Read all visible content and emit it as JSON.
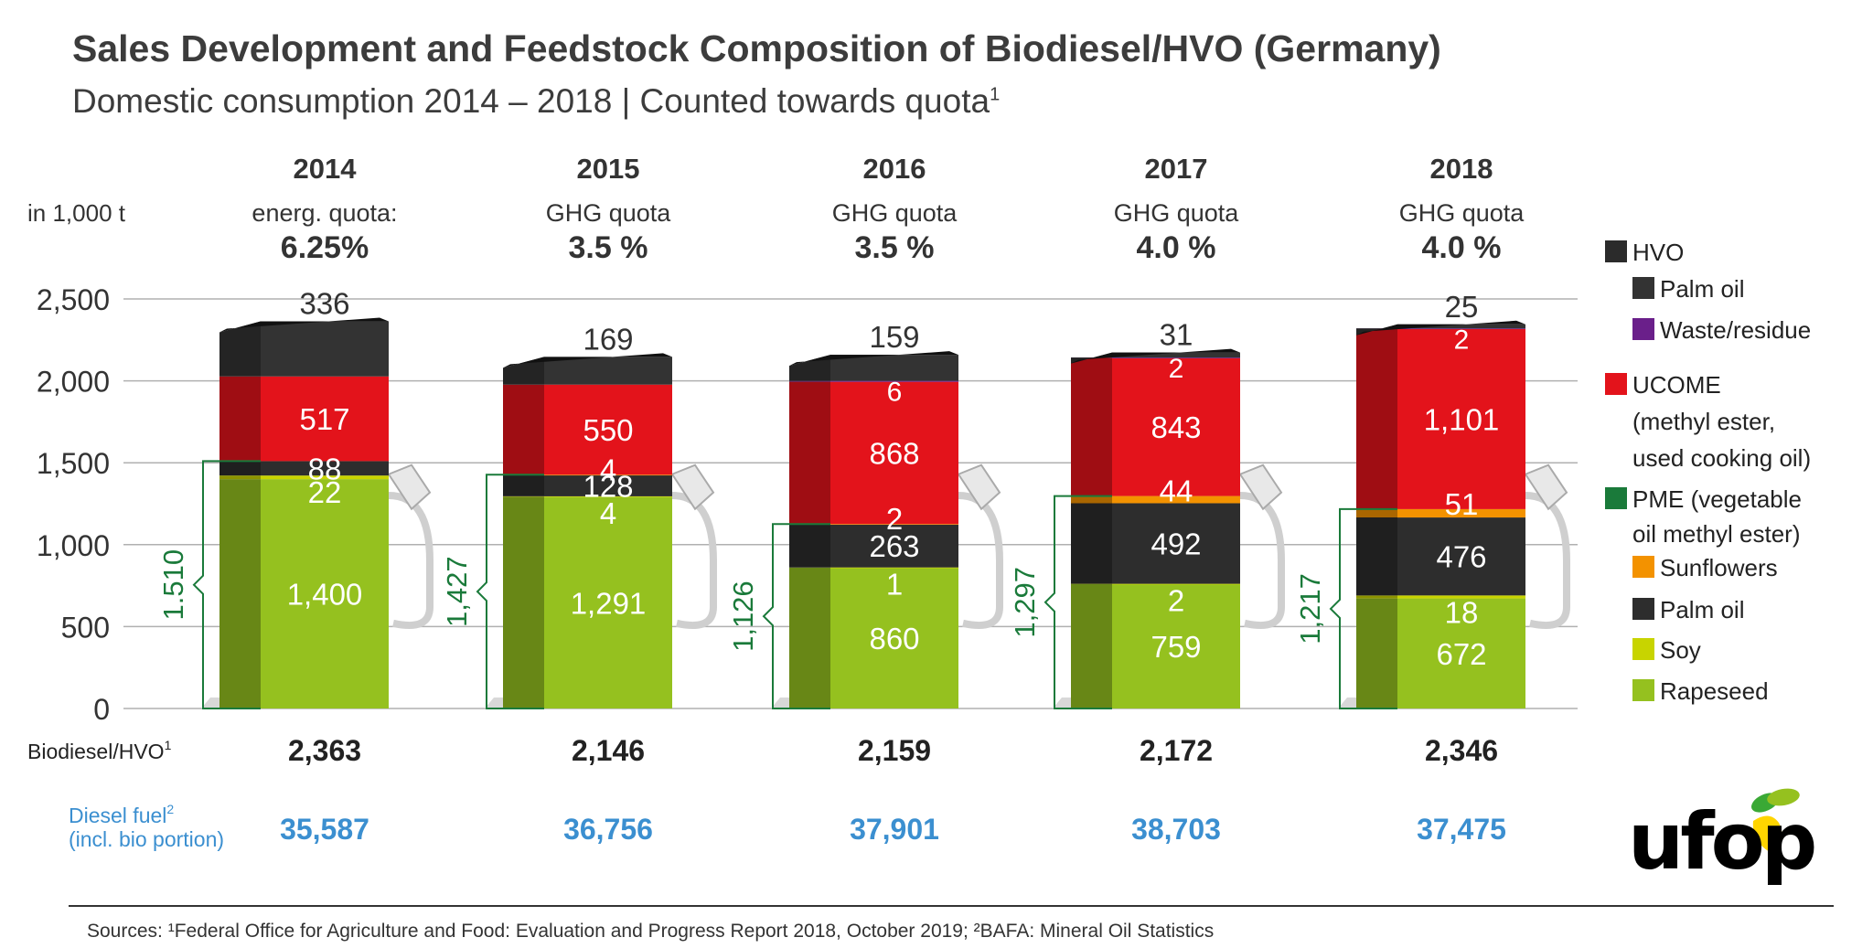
{
  "title": "Sales Development and Feedstock Composition of Biodiesel/HVO (Germany)",
  "subtitle": "Domestic consumption 2014 – 2018 | Counted towards quota",
  "subtitle_footnote": "1",
  "unit_label": "in 1,000 t",
  "colors": {
    "hvo": "#2b2b2b",
    "hvo_palm": "#333333",
    "hvo_waste": "#6a1f8a",
    "ucome": "#e3131b",
    "pme": "#1a7a3a",
    "sunflowers": "#f39200",
    "palm_oil": "#2d2d2d",
    "soy": "#c8d400",
    "rapeseed": "#95c11f",
    "blue": "#3b8fd0",
    "green_text": "#1a7a3a"
  },
  "chart_data": {
    "type": "bar",
    "stacked": true,
    "categories": [
      "2014",
      "2015",
      "2016",
      "2017",
      "2018"
    ],
    "quota_labels": [
      {
        "type": "energ. quota:",
        "value": "6.25%"
      },
      {
        "type": "GHG quota",
        "value": "3.5 %"
      },
      {
        "type": "GHG quota",
        "value": "3.5 %"
      },
      {
        "type": "GHG quota",
        "value": "4.0 %"
      },
      {
        "type": "GHG quota",
        "value": "4.0 %"
      }
    ],
    "ylim": [
      0,
      2500
    ],
    "yticks": [
      0,
      500,
      1000,
      1500,
      2000,
      2500
    ],
    "ytick_labels": [
      "0",
      "500",
      "1,000",
      "1,500",
      "2,000",
      "2,500"
    ],
    "series": [
      {
        "name": "Rapeseed",
        "group": "PME",
        "values": [
          1400,
          1291,
          860,
          759,
          672
        ],
        "labels": [
          "1,400",
          "1,291",
          "860",
          "759",
          "672"
        ]
      },
      {
        "name": "Soy",
        "group": "PME",
        "values": [
          22,
          4,
          1,
          2,
          18
        ],
        "labels": [
          "22",
          "4",
          "1",
          "2",
          "18"
        ]
      },
      {
        "name": "Palm oil",
        "group": "PME",
        "values": [
          88,
          128,
          263,
          492,
          476
        ],
        "labels": [
          "88",
          "128",
          "263",
          "492",
          "476"
        ]
      },
      {
        "name": "Sunflowers",
        "group": "PME",
        "values": [
          0,
          4,
          2,
          44,
          51
        ],
        "labels": [
          "",
          "4",
          "2",
          "44",
          "51"
        ]
      },
      {
        "name": "UCOME",
        "group": "UCOME",
        "values": [
          517,
          550,
          868,
          843,
          1101
        ],
        "labels": [
          "517",
          "550",
          "868",
          "843",
          "1,101"
        ]
      },
      {
        "name": "Waste/residue",
        "group": "HVO",
        "values": [
          0,
          0,
          6,
          2,
          2
        ],
        "labels": [
          "",
          "",
          "6",
          "2",
          "2"
        ]
      },
      {
        "name": "Palm oil",
        "group": "HVO",
        "values": [
          336,
          169,
          159,
          31,
          25
        ],
        "labels": [
          "336",
          "169",
          "159",
          "31",
          "25"
        ]
      }
    ],
    "pme_totals": [
      "1.510",
      "1,427",
      "1,126",
      "1,297",
      "1,217"
    ],
    "pme_total_values": [
      1510,
      1427,
      1126,
      1297,
      1217
    ],
    "biodiesel_hvo_label": "Biodiesel/HVO",
    "biodiesel_hvo_footnote": "1",
    "biodiesel_hvo_totals": [
      "2,363",
      "2,146",
      "2,159",
      "2,172",
      "2,346"
    ],
    "diesel_label_line1": "Diesel fuel",
    "diesel_label_footnote": "2",
    "diesel_label_line2": "(incl. bio portion)",
    "diesel_totals": [
      "35,587",
      "36,756",
      "37,901",
      "38,703",
      "37,475"
    ],
    "legend": {
      "hvo": "HVO",
      "hvo_palm": "Palm oil",
      "hvo_waste": "Waste/residue",
      "ucome_1": "UCOME",
      "ucome_2": "(methyl ester,",
      "ucome_3": "used cooking oil)",
      "pme_1": "PME (vegetable",
      "pme_2": "oil methyl ester)",
      "sunflowers": "Sunflowers",
      "palm_oil": "Palm oil",
      "soy": "Soy",
      "rapeseed": "Rapeseed"
    }
  },
  "sources": "Sources: ¹Federal Office for Agriculture and Food: Evaluation and Progress Report 2018, October 2019; ²BAFA: Mineral Oil Statistics",
  "logo_text": "ufop"
}
